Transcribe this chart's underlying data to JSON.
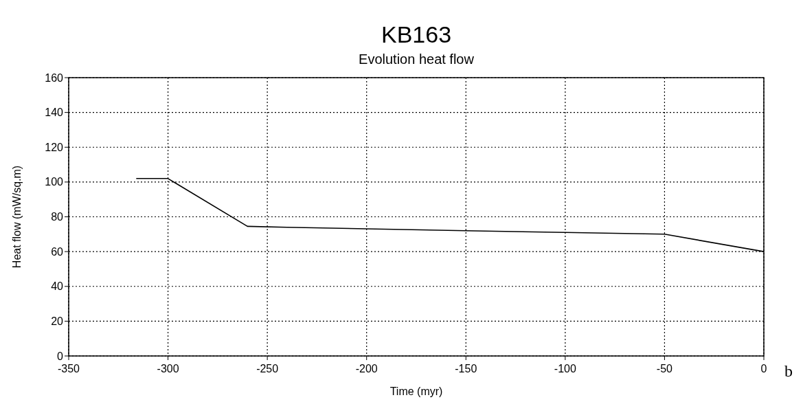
{
  "chart_data": {
    "type": "line",
    "title": "KB163",
    "subtitle": "Evolution heat flow",
    "xlabel": "Time (myr)",
    "ylabel": "Heat flow (mW/sq.m)",
    "x": [
      -316,
      -300,
      -260,
      -240,
      -150,
      -100,
      -50,
      0
    ],
    "series": [
      {
        "color": "#000000",
        "values": [
          102,
          102,
          74.5,
          74,
          72,
          71,
          70,
          60
        ]
      }
    ],
    "xlim": [
      -350,
      0
    ],
    "xticks": [
      -350,
      -300,
      -250,
      -200,
      -150,
      -100,
      -50,
      0
    ],
    "ylim": [
      0,
      160
    ],
    "yticks": [
      0,
      20,
      40,
      60,
      80,
      100,
      120,
      140,
      160
    ],
    "grid": true,
    "annotations": [
      "b"
    ]
  }
}
